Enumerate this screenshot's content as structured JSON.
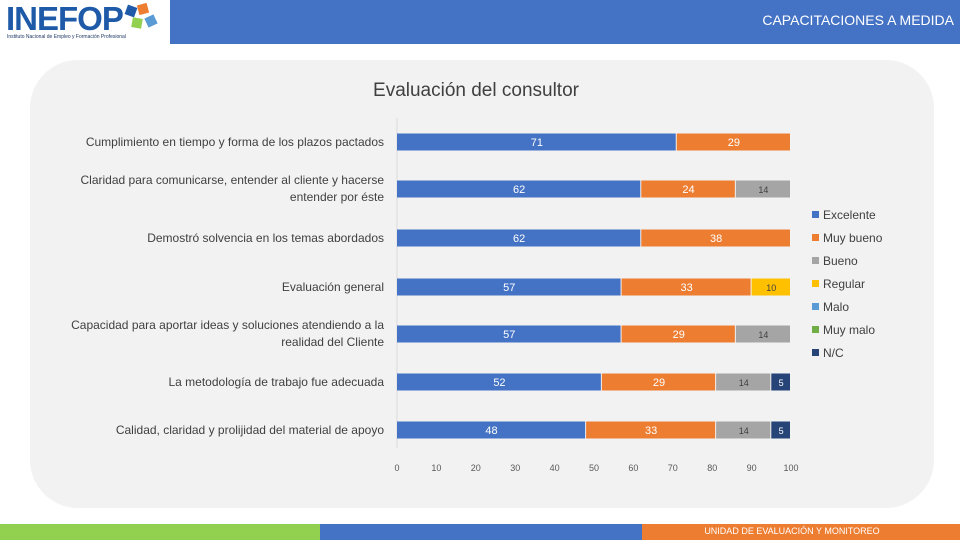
{
  "header": {
    "logo_text": "INEFOP",
    "logo_subtitle": "Instituto Nacional de Empleo y Formación Profesional",
    "title": "CAPACITACIONES A MEDIDA"
  },
  "footer": {
    "text": "UNIDAD DE EVALUACIÓN Y MONITOREO"
  },
  "colors": {
    "Excelente": "#4472c4",
    "Muy bueno": "#ed7d31",
    "Bueno": "#a5a5a5",
    "Regular": "#ffc000",
    "Malo": "#5b9bd5",
    "Muy malo": "#70ad47",
    "N/C": "#264478"
  },
  "chart_data": {
    "type": "bar",
    "orientation": "horizontal",
    "stacked": true,
    "title": "Evaluación del consultor",
    "categories": [
      "Cumplimiento en tiempo y forma de los plazos pactados",
      "Claridad para comunicarse, entender al cliente y hacerse entender por éste",
      "Demostró solvencia en los temas abordados",
      "Evaluación general",
      "Capacidad para aportar ideas y soluciones atendiendo a la realidad del Cliente",
      "La metodología de trabajo fue adecuada",
      "Calidad, claridad y prolijidad del material de apoyo"
    ],
    "category_lines": [
      [
        "Cumplimiento en tiempo y forma de los plazos pactados"
      ],
      [
        "Claridad para comunicarse, entender al cliente y hacerse",
        "entender por éste"
      ],
      [
        "Demostró solvencia en los temas abordados"
      ],
      [
        "Evaluación general"
      ],
      [
        "Capacidad para aportar ideas y soluciones atendiendo a la",
        "realidad del Cliente"
      ],
      [
        "La metodología de trabajo fue adecuada"
      ],
      [
        "Calidad, claridad y prolijidad del material de apoyo"
      ]
    ],
    "series": [
      {
        "name": "Excelente",
        "values": [
          71,
          62,
          62,
          57,
          57,
          52,
          48
        ]
      },
      {
        "name": "Muy bueno",
        "values": [
          29,
          24,
          38,
          33,
          29,
          29,
          33
        ]
      },
      {
        "name": "Bueno",
        "values": [
          0,
          14,
          0,
          0,
          14,
          14,
          14
        ]
      },
      {
        "name": "Regular",
        "values": [
          0,
          0,
          0,
          10,
          0,
          0,
          0
        ]
      },
      {
        "name": "Malo",
        "values": [
          0,
          0,
          0,
          0,
          0,
          0,
          0
        ]
      },
      {
        "name": "Muy malo",
        "values": [
          0,
          0,
          0,
          0,
          0,
          0,
          0
        ]
      },
      {
        "name": "N/C",
        "values": [
          0,
          0,
          0,
          0,
          0,
          5,
          5
        ]
      }
    ],
    "xlim": [
      0,
      100
    ],
    "xticks": [
      0,
      10,
      20,
      30,
      40,
      50,
      60,
      70,
      80,
      90,
      100
    ],
    "legend": "right",
    "grid": false
  }
}
